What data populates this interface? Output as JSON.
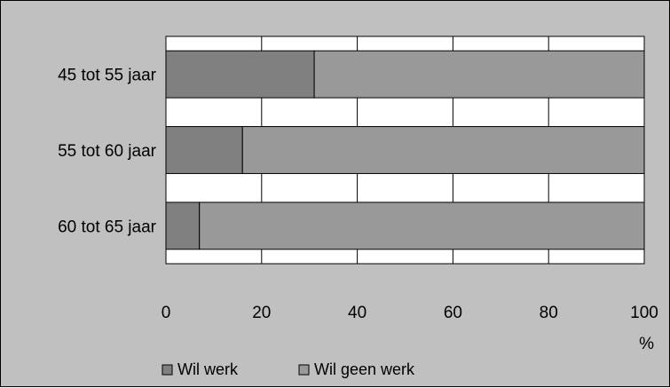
{
  "chart_data": {
    "type": "bar",
    "orientation": "horizontal",
    "stacked": true,
    "categories": [
      "45 tot 55 jaar",
      "55 tot 60 jaar",
      "60 tot 65 jaar"
    ],
    "series": [
      {
        "name": "Wil werk",
        "values": [
          31,
          16,
          7
        ],
        "color": "#808080"
      },
      {
        "name": "Wil geen werk",
        "values": [
          69,
          84,
          93
        ],
        "color": "#999999"
      }
    ],
    "x_ticks": [
      "0",
      "20",
      "40",
      "60",
      "80",
      "100"
    ],
    "xlim": [
      0,
      100
    ],
    "xlabel": "%",
    "grid": true,
    "legend_position": "bottom-left",
    "colors": {
      "background": "#c0c0c0",
      "plot_area": "#ffffff",
      "outline": "#000000"
    }
  }
}
